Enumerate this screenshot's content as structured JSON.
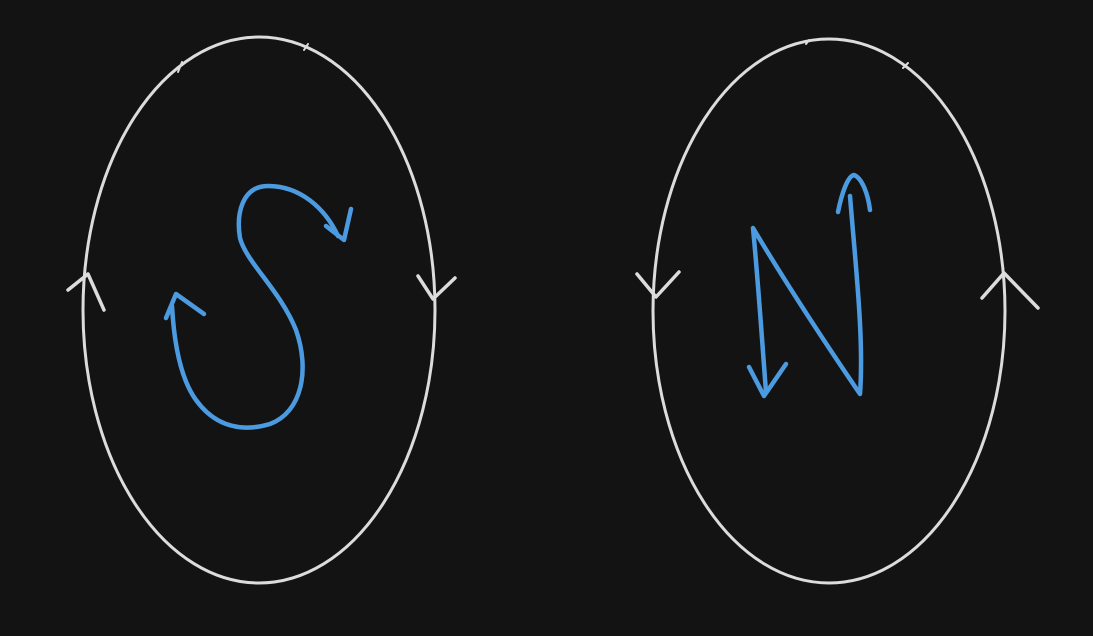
{
  "diagram": {
    "background": "#131314",
    "loop_color": "#dcdcdc",
    "letter_color": "#4c9be0",
    "left_pole": {
      "letter": "S",
      "loop_direction": "clockwise"
    },
    "right_pole": {
      "letter": "N",
      "loop_direction": "counterclockwise"
    }
  }
}
